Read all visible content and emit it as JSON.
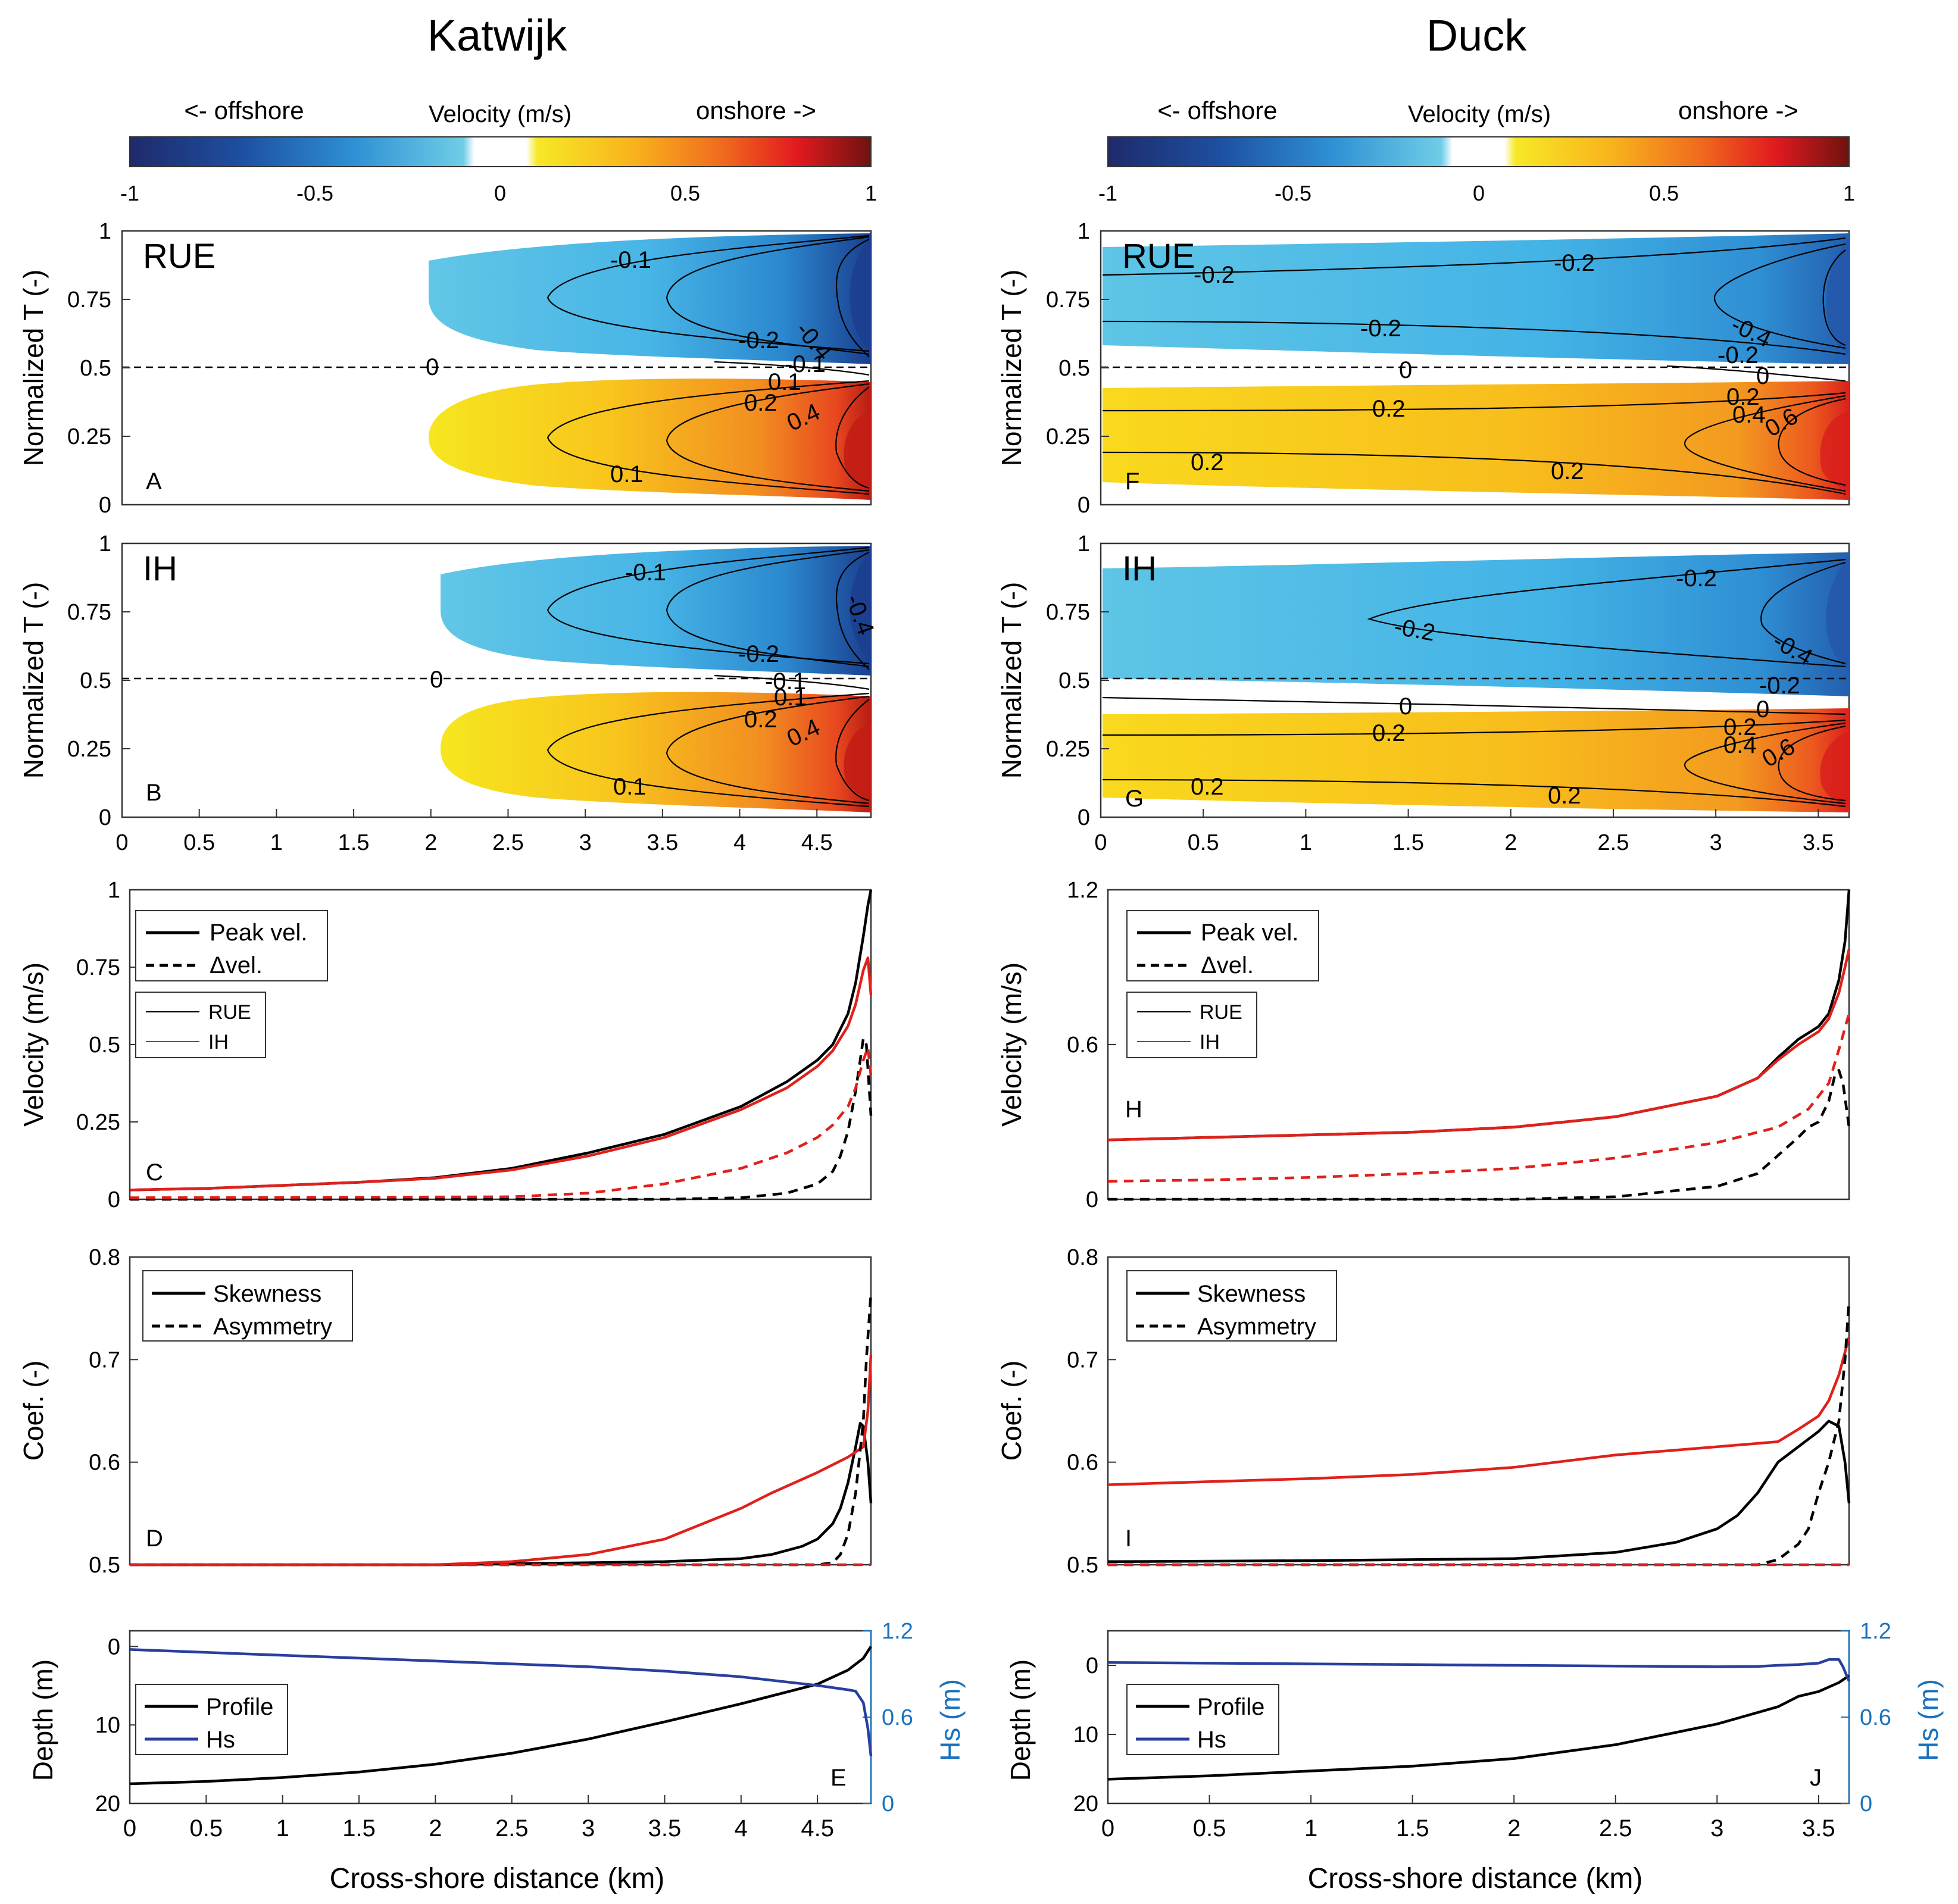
{
  "colors": {
    "black": "#000000",
    "red": "#e0201b",
    "blue": "#2a3f9d",
    "hs_axis": "#1a72bd",
    "frame": "#333333"
  },
  "columns": [
    {
      "title": "Katwijk"
    },
    {
      "title": "Duck"
    }
  ],
  "colorbar": {
    "offshore": "<- offshore",
    "label": "Velocity (m/s)",
    "onshore": "onshore ->",
    "ticks": [
      "-1",
      "-0.5",
      "0",
      "0.5",
      "1"
    ]
  },
  "ylabels": {
    "contour": "Normalized T (-)",
    "velocity": "Velocity (m/s)",
    "coef": "Coef. (-)",
    "depth": "Depth (m)",
    "hs": "Hs (m)"
  },
  "xlabel": "Cross-shore distance (km)",
  "legends": {
    "peak": "Peak vel.",
    "dvel": "Δvel.",
    "rue": "RUE",
    "ih": "IH",
    "skew": "Skewness",
    "asym": "Asymmetry",
    "profile": "Profile",
    "hs": "Hs"
  },
  "panels": {
    "A": {
      "letter": "A",
      "name": "RUE"
    },
    "B": {
      "letter": "B",
      "name": "IH"
    },
    "F": {
      "letter": "F",
      "name": "RUE"
    },
    "G": {
      "letter": "G",
      "name": "IH"
    },
    "C": {
      "letter": "C"
    },
    "D": {
      "letter": "D"
    },
    "E": {
      "letter": "E"
    },
    "H": {
      "letter": "H"
    },
    "I": {
      "letter": "I"
    },
    "J": {
      "letter": "J"
    }
  },
  "chart_data": [
    {
      "panel": "A",
      "type": "heatmap",
      "site": "Katwijk",
      "model": "RUE",
      "xlim": [
        0,
        4.85
      ],
      "ylim": [
        0,
        1
      ],
      "ylabel": "Normalized T (-)",
      "yticks": [
        "0",
        "0.25",
        "0.5",
        "0.75",
        "1"
      ],
      "contour_labels": [
        "-0.1",
        "-0.4",
        "-0.2",
        "-0.1",
        "0",
        "0.1",
        "0.2",
        "0.4",
        "0.1",
        "0"
      ]
    },
    {
      "panel": "B",
      "type": "heatmap",
      "site": "Katwijk",
      "model": "IH",
      "xlim": [
        0,
        4.85
      ],
      "ylim": [
        0,
        1
      ],
      "ylabel": "Normalized T (-)",
      "xticks": [
        "0",
        "0.5",
        "1",
        "1.5",
        "2",
        "2.5",
        "3",
        "3.5",
        "4",
        "4.5"
      ],
      "yticks": [
        "0",
        "0.25",
        "0.5",
        "0.75",
        "1"
      ],
      "contour_labels": [
        "-0.1",
        "-0.4",
        "-0.2",
        "-0.1",
        "0",
        "0.1",
        "0.2",
        "0.4",
        "0.1",
        "0"
      ]
    },
    {
      "panel": "F",
      "type": "heatmap",
      "site": "Duck",
      "model": "RUE",
      "xlim": [
        0,
        3.65
      ],
      "ylim": [
        0,
        1
      ],
      "ylabel": "Normalized T (-)",
      "yticks": [
        "0",
        "0.25",
        "0.5",
        "0.75",
        "1"
      ],
      "contour_labels": [
        "-0.2",
        "-0.2",
        "-0.2",
        "-0.4",
        "-0.2",
        "0",
        "0",
        "0.2",
        "0.2",
        "0.4",
        "0.6",
        "0.2",
        "0.2"
      ]
    },
    {
      "panel": "G",
      "type": "heatmap",
      "site": "Duck",
      "model": "IH",
      "xlim": [
        0,
        3.65
      ],
      "ylim": [
        0,
        1
      ],
      "ylabel": "Normalized T (-)",
      "xticks": [
        "0",
        "0.5",
        "1",
        "1.5",
        "2",
        "2.5",
        "3",
        "3.5"
      ],
      "yticks": [
        "0",
        "0.25",
        "0.5",
        "0.75",
        "1"
      ],
      "contour_labels": [
        "-0.2",
        "-0.2",
        "-0.4",
        "-0.2",
        "0",
        "0",
        "0.2",
        "0.2",
        "0.4",
        "0.6",
        "0.2",
        "0.2"
      ]
    },
    {
      "panel": "C",
      "type": "line",
      "site": "Katwijk",
      "ylabel": "Velocity (m/s)",
      "xlim": [
        0,
        4.85
      ],
      "ylim": [
        0,
        1
      ],
      "yticks": [
        "0",
        "0.25",
        "0.5",
        "0.75",
        "1"
      ],
      "series": [
        {
          "name": "Peak vel. RUE",
          "color": "black",
          "dash": false,
          "x": [
            0,
            0.5,
            1,
            1.5,
            2,
            2.5,
            3,
            3.5,
            4,
            4.3,
            4.5,
            4.6,
            4.7,
            4.75,
            4.8,
            4.83,
            4.85
          ],
          "y": [
            0.03,
            0.035,
            0.045,
            0.055,
            0.07,
            0.1,
            0.15,
            0.21,
            0.3,
            0.38,
            0.45,
            0.5,
            0.6,
            0.7,
            0.85,
            0.95,
            1.0
          ]
        },
        {
          "name": "Peak vel. IH",
          "color": "red",
          "dash": false,
          "x": [
            0,
            0.5,
            1,
            1.5,
            2,
            2.5,
            3,
            3.5,
            4,
            4.3,
            4.5,
            4.6,
            4.7,
            4.75,
            4.8,
            4.83,
            4.85
          ],
          "y": [
            0.03,
            0.035,
            0.045,
            0.055,
            0.068,
            0.095,
            0.14,
            0.2,
            0.29,
            0.36,
            0.43,
            0.48,
            0.56,
            0.63,
            0.74,
            0.78,
            0.66
          ]
        },
        {
          "name": "Δvel. RUE",
          "color": "black",
          "dash": true,
          "x": [
            0,
            3.5,
            4,
            4.3,
            4.5,
            4.6,
            4.65,
            4.7,
            4.75,
            4.78,
            4.8,
            4.82,
            4.85
          ],
          "y": [
            0.0,
            0.0,
            0.005,
            0.02,
            0.05,
            0.09,
            0.14,
            0.22,
            0.35,
            0.45,
            0.52,
            0.5,
            0.27
          ]
        },
        {
          "name": "Δvel. IH",
          "color": "red",
          "dash": true,
          "x": [
            0,
            2.5,
            3,
            3.5,
            4,
            4.3,
            4.5,
            4.6,
            4.7,
            4.75,
            4.8,
            4.83,
            4.85
          ],
          "y": [
            0.005,
            0.008,
            0.02,
            0.05,
            0.1,
            0.15,
            0.2,
            0.24,
            0.3,
            0.36,
            0.45,
            0.49,
            0.4
          ]
        }
      ]
    },
    {
      "panel": "D",
      "type": "line",
      "site": "Katwijk",
      "ylabel": "Coef. (-)",
      "xlim": [
        0,
        4.85
      ],
      "ylim": [
        0.5,
        0.8
      ],
      "yticks": [
        "0.5",
        "0.6",
        "0.7",
        "0.8"
      ],
      "series": [
        {
          "name": "Skewness RUE",
          "color": "black",
          "dash": false,
          "x": [
            0,
            2,
            3,
            3.5,
            4,
            4.2,
            4.4,
            4.5,
            4.6,
            4.65,
            4.7,
            4.75,
            4.78,
            4.8,
            4.83,
            4.85
          ],
          "y": [
            0.5,
            0.5,
            0.502,
            0.503,
            0.506,
            0.51,
            0.518,
            0.525,
            0.54,
            0.555,
            0.58,
            0.615,
            0.638,
            0.635,
            0.6,
            0.56
          ]
        },
        {
          "name": "Skewness IH",
          "color": "red",
          "dash": false,
          "x": [
            0,
            1.5,
            2,
            2.5,
            3,
            3.5,
            4,
            4.2,
            4.5,
            4.7,
            4.8,
            4.83,
            4.85
          ],
          "y": [
            0.5,
            0.5,
            0.5,
            0.503,
            0.51,
            0.525,
            0.555,
            0.57,
            0.59,
            0.605,
            0.615,
            0.65,
            0.705
          ]
        },
        {
          "name": "Asymmetry RUE",
          "color": "black",
          "dash": true,
          "x": [
            0,
            4.5,
            4.6,
            4.65,
            4.7,
            4.75,
            4.8,
            4.82,
            4.85
          ],
          "y": [
            0.5,
            0.5,
            0.502,
            0.51,
            0.53,
            0.57,
            0.64,
            0.7,
            0.765
          ]
        },
        {
          "name": "Asymmetry IH",
          "color": "red",
          "dash": true,
          "x": [
            0,
            4.85
          ],
          "y": [
            0.5,
            0.5
          ]
        }
      ]
    },
    {
      "panel": "E",
      "type": "line",
      "site": "Katwijk",
      "ylabel": "Depth (m)",
      "y2label": "Hs (m)",
      "xlim": [
        0,
        4.85
      ],
      "ylim": [
        20,
        -2
      ],
      "y2lim": [
        0,
        1.2
      ],
      "yticks": [
        "0",
        "10",
        "20"
      ],
      "y2ticks": [
        "0",
        "0.6",
        "1.2"
      ],
      "xticks": [
        "0",
        "0.5",
        "1",
        "1.5",
        "2",
        "2.5",
        "3",
        "3.5",
        "4",
        "4.5"
      ],
      "series": [
        {
          "name": "Profile",
          "color": "black",
          "axis": "left",
          "x": [
            0,
            0.5,
            1,
            1.5,
            2,
            2.5,
            3,
            3.5,
            4,
            4.5,
            4.7,
            4.8,
            4.85
          ],
          "y": [
            17.5,
            17.2,
            16.7,
            16.0,
            15.0,
            13.6,
            11.8,
            9.6,
            7.3,
            4.8,
            3.0,
            1.5,
            0.0
          ]
        },
        {
          "name": "Hs",
          "color": "blue",
          "axis": "right",
          "x": [
            0,
            0.5,
            1,
            1.5,
            2,
            2.5,
            3,
            3.5,
            4,
            4.5,
            4.7,
            4.75,
            4.8,
            4.83,
            4.85
          ],
          "y": [
            1.07,
            1.05,
            1.03,
            1.01,
            0.99,
            0.97,
            0.95,
            0.92,
            0.88,
            0.82,
            0.79,
            0.78,
            0.7,
            0.52,
            0.33
          ]
        }
      ]
    },
    {
      "panel": "H",
      "type": "line",
      "site": "Duck",
      "ylabel": "Velocity (m/s)",
      "xlim": [
        0,
        3.65
      ],
      "ylim": [
        0,
        1.2
      ],
      "yticks": [
        "0",
        "0.6",
        "1.2"
      ],
      "series": [
        {
          "name": "Peak vel. RUE",
          "color": "black",
          "dash": false,
          "x": [
            0,
            0.5,
            1,
            1.5,
            2,
            2.5,
            3,
            3.2,
            3.3,
            3.4,
            3.5,
            3.55,
            3.6,
            3.63,
            3.65
          ],
          "y": [
            0.23,
            0.24,
            0.25,
            0.26,
            0.28,
            0.32,
            0.4,
            0.47,
            0.55,
            0.62,
            0.67,
            0.72,
            0.85,
            1.0,
            1.2
          ]
        },
        {
          "name": "Peak vel. IH",
          "color": "red",
          "dash": false,
          "x": [
            0,
            0.5,
            1,
            1.5,
            2,
            2.5,
            3,
            3.2,
            3.3,
            3.4,
            3.5,
            3.55,
            3.6,
            3.63,
            3.65
          ],
          "y": [
            0.23,
            0.24,
            0.25,
            0.26,
            0.28,
            0.32,
            0.4,
            0.47,
            0.54,
            0.6,
            0.65,
            0.7,
            0.8,
            0.9,
            0.97
          ]
        },
        {
          "name": "Δvel. RUE",
          "color": "black",
          "dash": true,
          "x": [
            0,
            2,
            2.5,
            3,
            3.2,
            3.3,
            3.4,
            3.45,
            3.5,
            3.55,
            3.58,
            3.6,
            3.62,
            3.65
          ],
          "y": [
            0.0,
            0.0,
            0.01,
            0.05,
            0.1,
            0.17,
            0.24,
            0.28,
            0.3,
            0.38,
            0.48,
            0.5,
            0.45,
            0.28
          ]
        },
        {
          "name": "Δvel. IH",
          "color": "red",
          "dash": true,
          "x": [
            0,
            0.5,
            1,
            1.5,
            2,
            2.5,
            3,
            3.3,
            3.45,
            3.55,
            3.6,
            3.65
          ],
          "y": [
            0.07,
            0.075,
            0.085,
            0.1,
            0.12,
            0.16,
            0.22,
            0.28,
            0.35,
            0.45,
            0.58,
            0.72
          ]
        }
      ]
    },
    {
      "panel": "I",
      "type": "line",
      "site": "Duck",
      "ylabel": "Coef. (-)",
      "xlim": [
        0,
        3.65
      ],
      "ylim": [
        0.5,
        0.8
      ],
      "yticks": [
        "0.5",
        "0.6",
        "0.7",
        "0.8"
      ],
      "series": [
        {
          "name": "Skewness RUE",
          "color": "black",
          "dash": false,
          "x": [
            0,
            1,
            2,
            2.5,
            2.8,
            3,
            3.1,
            3.2,
            3.3,
            3.4,
            3.5,
            3.55,
            3.6,
            3.63,
            3.65
          ],
          "y": [
            0.503,
            0.504,
            0.506,
            0.512,
            0.522,
            0.535,
            0.548,
            0.57,
            0.6,
            0.615,
            0.63,
            0.64,
            0.635,
            0.6,
            0.56
          ]
        },
        {
          "name": "Skewness IH",
          "color": "red",
          "dash": false,
          "x": [
            0,
            0.5,
            1,
            1.5,
            2,
            2.5,
            3,
            3.3,
            3.4,
            3.5,
            3.55,
            3.6,
            3.65
          ],
          "y": [
            0.578,
            0.581,
            0.584,
            0.588,
            0.595,
            0.607,
            0.615,
            0.62,
            0.632,
            0.645,
            0.66,
            0.685,
            0.722
          ]
        },
        {
          "name": "Asymmetry RUE",
          "color": "black",
          "dash": true,
          "x": [
            0,
            3.2,
            3.3,
            3.4,
            3.45,
            3.5,
            3.55,
            3.6,
            3.63,
            3.65
          ],
          "y": [
            0.5,
            0.5,
            0.505,
            0.52,
            0.535,
            0.57,
            0.6,
            0.64,
            0.7,
            0.758
          ]
        },
        {
          "name": "Asymmetry IH",
          "color": "red",
          "dash": true,
          "x": [
            0,
            3.65
          ],
          "y": [
            0.5,
            0.5
          ]
        }
      ]
    },
    {
      "panel": "J",
      "type": "line",
      "site": "Duck",
      "ylabel": "Depth (m)",
      "y2label": "Hs (m)",
      "xlim": [
        0,
        3.65
      ],
      "ylim": [
        20,
        -5
      ],
      "y2lim": [
        0,
        1.2
      ],
      "yticks": [
        "0",
        "10",
        "20"
      ],
      "y2ticks": [
        "0",
        "0.6",
        "1.2"
      ],
      "xticks": [
        "0",
        "0.5",
        "1",
        "1.5",
        "2",
        "2.5",
        "3",
        "3.5"
      ],
      "series": [
        {
          "name": "Profile",
          "color": "black",
          "axis": "left",
          "x": [
            0,
            0.5,
            1,
            1.5,
            2,
            2.5,
            3,
            3.3,
            3.4,
            3.5,
            3.6,
            3.65
          ],
          "y": [
            16.5,
            16.0,
            15.3,
            14.6,
            13.5,
            11.5,
            8.5,
            6.0,
            4.5,
            3.8,
            2.5,
            1.5
          ]
        },
        {
          "name": "Hs",
          "color": "blue",
          "axis": "right",
          "x": [
            0,
            0.5,
            1,
            1.5,
            2,
            2.5,
            3,
            3.2,
            3.3,
            3.4,
            3.5,
            3.55,
            3.6,
            3.62,
            3.65
          ],
          "y": [
            0.98,
            0.975,
            0.97,
            0.965,
            0.96,
            0.955,
            0.95,
            0.952,
            0.96,
            0.965,
            0.975,
            1.0,
            1.0,
            0.95,
            0.85
          ]
        }
      ]
    }
  ]
}
